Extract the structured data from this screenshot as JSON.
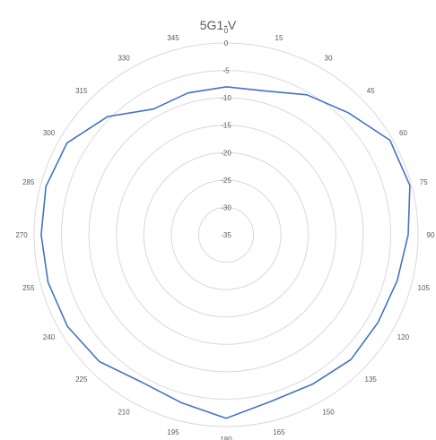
{
  "chart_data": {
    "type": "radar",
    "title": "5G1-V",
    "angle_labels": [
      "0",
      "15",
      "30",
      "45",
      "60",
      "75",
      "90",
      "105",
      "120",
      "135",
      "150",
      "165",
      "180",
      "195",
      "210",
      "225",
      "240",
      "255",
      "270",
      "285",
      "300",
      "315",
      "330",
      "345"
    ],
    "radial_ticks": [
      "0",
      "-5",
      "-10",
      "-15",
      "-20",
      "-25",
      "-30",
      "-35"
    ],
    "rlim": [
      -35,
      0
    ],
    "grid": true,
    "series": [
      {
        "color": "#4472c4",
        "angles": [
          0,
          15,
          30,
          45,
          60,
          75,
          90,
          105,
          120,
          135,
          150,
          165,
          180,
          195,
          210,
          225,
          240,
          255,
          270,
          285,
          300,
          315,
          330,
          345
        ],
        "values": [
          -8,
          -7.8,
          -5.5,
          -3.5,
          -0.5,
          -0.3,
          -1.8,
          -2.7,
          -3.0,
          -2.8,
          -3.5,
          -3.5,
          -1.5,
          -3.3,
          -4.0,
          -2.3,
          -1.6,
          -1.4,
          -1.3,
          -1.0,
          -1.5,
          -4.5,
          -8.5,
          -8.2
        ]
      }
    ]
  }
}
